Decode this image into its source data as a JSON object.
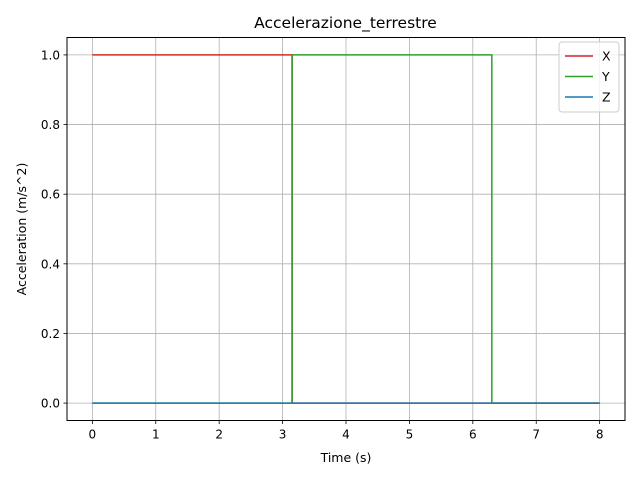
{
  "chart_data": {
    "type": "line",
    "title": "Accelerazione_terrestre",
    "xlabel": "Time (s)",
    "ylabel": "Acceleration (m/s^2)",
    "xlim": [
      -0.4,
      8.4
    ],
    "ylim": [
      -0.05,
      1.05
    ],
    "xticks": [
      0,
      1,
      2,
      3,
      4,
      5,
      6,
      7,
      8
    ],
    "yticks": [
      0.0,
      0.2,
      0.4,
      0.6,
      0.8,
      1.0
    ],
    "xtick_labels": [
      "0",
      "1",
      "2",
      "3",
      "4",
      "5",
      "6",
      "7",
      "8"
    ],
    "ytick_labels": [
      "0.0",
      "0.2",
      "0.4",
      "0.6",
      "0.8",
      "1.0"
    ],
    "grid": true,
    "legend_position": "top-right",
    "series": [
      {
        "name": "X",
        "color": "#d62728",
        "x": [
          0,
          3.15,
          3.15,
          8
        ],
        "y": [
          1,
          1,
          0,
          0
        ]
      },
      {
        "name": "Y",
        "color": "#2ca02c",
        "x": [
          0,
          3.15,
          3.15,
          6.3,
          6.3,
          8
        ],
        "y": [
          0,
          0,
          1,
          1,
          0,
          0
        ]
      },
      {
        "name": "Z",
        "color": "#1f77b4",
        "x": [
          0,
          8
        ],
        "y": [
          0,
          0
        ]
      }
    ]
  }
}
